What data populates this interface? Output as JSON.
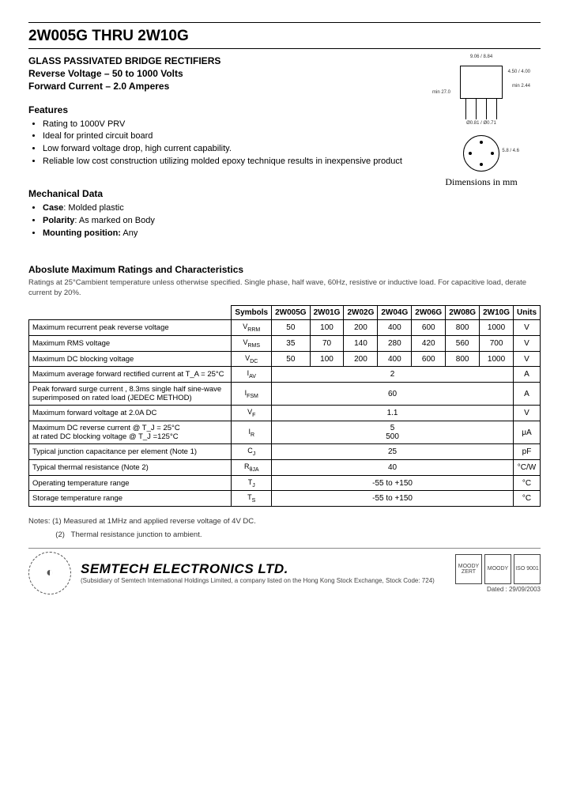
{
  "header": {
    "title": "2W005G THRU 2W10G",
    "subtitle_l1": "GLASS PASSIVATED BRIDGE RECTIFIERS",
    "subtitle_l2": "Reverse Voltage – 50 to 1000 Volts",
    "subtitle_l3": "Forward Current – 2.0 Amperes"
  },
  "features": {
    "head": "Features",
    "items": [
      "Rating to 1000V PRV",
      "Ideal for printed circuit board",
      "Low forward voltage drop, high current capability.",
      "Reliable low cost construction utilizing molded epoxy technique results in inexpensive product"
    ]
  },
  "mech": {
    "head": "Mechanical Data",
    "items": [
      {
        "k": "Case",
        "v": ": Molded plastic"
      },
      {
        "k": "Polarity",
        "v": ": As marked on Body"
      },
      {
        "k": "Mounting position:",
        "v": " Any"
      }
    ]
  },
  "diagram": {
    "dim_caption": "Dimensions in mm",
    "top_w": "9.06 / 8.84",
    "side_h": "min 27.0",
    "lead": "Ø0.81 / Ø0.71",
    "right_h": "4.50 / 4.00",
    "right_s": "min 2.44",
    "circ_lbl": "5.8 / 4.6"
  },
  "ratings": {
    "head": "Aboslute Maximum Ratings and Characteristics",
    "intro": "Ratings at 25°Cambient temperature unless otherwise specified. Single phase, half wave, 60Hz, resistive or inductive load. For capacitive load, derate current by 20%.",
    "cols": [
      "Symbols",
      "2W005G",
      "2W01G",
      "2W02G",
      "2W04G",
      "2W06G",
      "2W08G",
      "2W10G",
      "Units"
    ],
    "rows": [
      {
        "p": "Maximum recurrent peak reverse voltage",
        "s": "V_RRM",
        "v": [
          "50",
          "100",
          "200",
          "400",
          "600",
          "800",
          "1000"
        ],
        "u": "V"
      },
      {
        "p": "Maximum RMS voltage",
        "s": "V_RMS",
        "v": [
          "35",
          "70",
          "140",
          "280",
          "420",
          "560",
          "700"
        ],
        "u": "V"
      },
      {
        "p": "Maximum DC blocking voltage",
        "s": "V_DC",
        "v": [
          "50",
          "100",
          "200",
          "400",
          "600",
          "800",
          "1000"
        ],
        "u": "V"
      },
      {
        "p": "Maximum average forward rectified current at T_A = 25°C",
        "s": "I_(AV)",
        "span": "2",
        "u": "A"
      },
      {
        "p": "Peak forward surge current , 8.3ms single half sine-wave superimposed on rated load (JEDEC METHOD)",
        "s": "I_FSM",
        "span": "60",
        "u": "A"
      },
      {
        "p": "Maximum forward voltage at 2.0A DC",
        "s": "V_F",
        "span": "1.1",
        "u": "V"
      },
      {
        "p": "Maximum DC reverse current      @ T_J = 25°C\nat rated DC blocking voltage      @ T_J =125°C",
        "s": "I_R",
        "span": "5\n500",
        "u": "μA"
      },
      {
        "p": "Typical junction capacitance per element (Note 1)",
        "s": "C_J",
        "span": "25",
        "u": "pF"
      },
      {
        "p": "Typical thermal resistance (Note 2)",
        "s": "R_θJA",
        "span": "40",
        "u": "°C/W"
      },
      {
        "p": "Operating temperature range",
        "s": "T_J",
        "span": "-55 to +150",
        "u": "°C"
      },
      {
        "p": "Storage temperature range",
        "s": "T_S",
        "span": "-55 to +150",
        "u": "°C"
      }
    ]
  },
  "notes": {
    "n1": "Notes:   (1) Measured at 1MHz and applied reverse voltage of 4V DC.",
    "n2": "             (2)   Thermal resistance junction to ambient."
  },
  "footer": {
    "company": "SEMTECH ELECTRONICS LTD.",
    "sub": "(Subsidiary of Semtech International Holdings Limited, a company listed on the Hong Kong Stock Exchange, Stock Code: 724)",
    "dated": "Dated : 29/09/2003",
    "certs": [
      "MOODY ZERT",
      "MOODY",
      "ISO 9001"
    ]
  },
  "colors": {
    "text": "#000000",
    "bg": "#ffffff",
    "border": "#000000"
  }
}
